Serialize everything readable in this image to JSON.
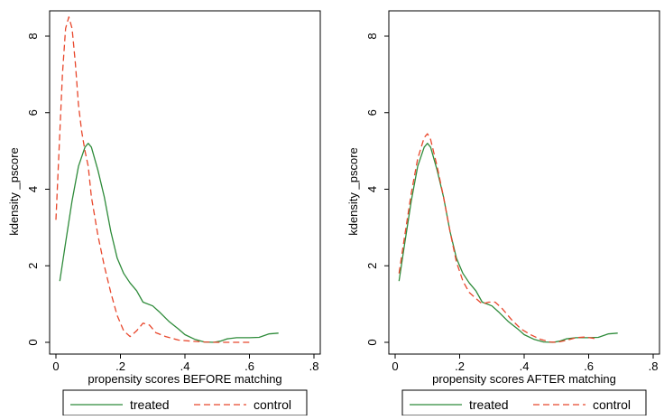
{
  "chart_data": [
    {
      "type": "line",
      "title": "",
      "xlabel": "propensity scores BEFORE matching",
      "ylabel": "kdensity _pscore",
      "xlim": [
        0,
        0.8
      ],
      "ylim": [
        0,
        8.7
      ],
      "x_ticks": [
        0,
        0.2,
        0.4,
        0.6,
        0.8
      ],
      "x_tick_labels": [
        "0",
        ".2",
        ".4",
        ".6",
        ".8"
      ],
      "y_ticks": [
        0,
        2,
        4,
        6,
        8
      ],
      "y_tick_labels": [
        "0",
        "2",
        "4",
        "6",
        "8"
      ],
      "grid": false,
      "legend": "bottom",
      "series": [
        {
          "name": "treated",
          "color": "#2e8b3a",
          "dash": "solid",
          "x": [
            0.012,
            0.03,
            0.05,
            0.07,
            0.09,
            0.1,
            0.11,
            0.13,
            0.15,
            0.17,
            0.19,
            0.21,
            0.23,
            0.25,
            0.27,
            0.3,
            0.32,
            0.35,
            0.38,
            0.4,
            0.43,
            0.46,
            0.49,
            0.51,
            0.53,
            0.56,
            0.6,
            0.63,
            0.66,
            0.69
          ],
          "y": [
            1.6,
            2.6,
            3.7,
            4.6,
            5.1,
            5.2,
            5.1,
            4.5,
            3.8,
            2.9,
            2.2,
            1.8,
            1.55,
            1.35,
            1.05,
            0.95,
            0.8,
            0.55,
            0.35,
            0.2,
            0.08,
            0.01,
            0.0,
            0.03,
            0.09,
            0.12,
            0.12,
            0.13,
            0.22,
            0.24
          ]
        },
        {
          "name": "control",
          "color": "#e8472c",
          "dash": "dashed",
          "x": [
            0.0,
            0.01,
            0.02,
            0.03,
            0.04,
            0.05,
            0.06,
            0.07,
            0.08,
            0.09,
            0.1,
            0.11,
            0.13,
            0.15,
            0.17,
            0.19,
            0.21,
            0.23,
            0.25,
            0.27,
            0.29,
            0.31,
            0.34,
            0.38,
            0.42,
            0.46,
            0.5,
            0.55,
            0.6
          ],
          "y": [
            3.2,
            5.1,
            7.0,
            8.2,
            8.5,
            8.2,
            7.3,
            6.2,
            5.5,
            5.0,
            4.6,
            3.8,
            2.8,
            2.0,
            1.3,
            0.7,
            0.3,
            0.15,
            0.3,
            0.5,
            0.45,
            0.25,
            0.15,
            0.06,
            0.03,
            0.01,
            0.0,
            0.0,
            0.0
          ]
        }
      ]
    },
    {
      "type": "line",
      "title": "",
      "xlabel": "propensity scores AFTER matching",
      "ylabel": "kdensity _pscore",
      "xlim": [
        0,
        0.8
      ],
      "ylim": [
        0,
        8.7
      ],
      "x_ticks": [
        0,
        0.2,
        0.4,
        0.6,
        0.8
      ],
      "x_tick_labels": [
        "0",
        ".2",
        ".4",
        ".6",
        ".8"
      ],
      "y_ticks": [
        0,
        2,
        4,
        6,
        8
      ],
      "y_tick_labels": [
        "0",
        "2",
        "4",
        "6",
        "8"
      ],
      "grid": false,
      "legend": "bottom",
      "series": [
        {
          "name": "treated",
          "color": "#2e8b3a",
          "dash": "solid",
          "x": [
            0.012,
            0.03,
            0.05,
            0.07,
            0.09,
            0.1,
            0.11,
            0.13,
            0.15,
            0.17,
            0.19,
            0.21,
            0.23,
            0.25,
            0.27,
            0.3,
            0.32,
            0.35,
            0.38,
            0.4,
            0.43,
            0.46,
            0.49,
            0.51,
            0.53,
            0.56,
            0.6,
            0.63,
            0.66,
            0.69
          ],
          "y": [
            1.6,
            2.6,
            3.7,
            4.6,
            5.1,
            5.2,
            5.1,
            4.5,
            3.8,
            2.9,
            2.2,
            1.8,
            1.55,
            1.35,
            1.05,
            0.95,
            0.8,
            0.55,
            0.35,
            0.2,
            0.08,
            0.01,
            0.0,
            0.03,
            0.09,
            0.12,
            0.12,
            0.13,
            0.22,
            0.24
          ]
        },
        {
          "name": "control",
          "color": "#e8472c",
          "dash": "dashed",
          "x": [
            0.012,
            0.03,
            0.05,
            0.07,
            0.09,
            0.1,
            0.11,
            0.13,
            0.15,
            0.17,
            0.19,
            0.21,
            0.23,
            0.25,
            0.27,
            0.29,
            0.31,
            0.33,
            0.36,
            0.39,
            0.42,
            0.45,
            0.48,
            0.5,
            0.53,
            0.56,
            0.59,
            0.62
          ],
          "y": [
            1.8,
            2.8,
            3.9,
            4.8,
            5.35,
            5.45,
            5.3,
            4.6,
            3.8,
            2.9,
            2.1,
            1.6,
            1.3,
            1.15,
            1.0,
            1.05,
            1.05,
            0.9,
            0.6,
            0.35,
            0.2,
            0.08,
            0.01,
            0.0,
            0.05,
            0.12,
            0.14,
            0.1
          ]
        }
      ]
    }
  ]
}
